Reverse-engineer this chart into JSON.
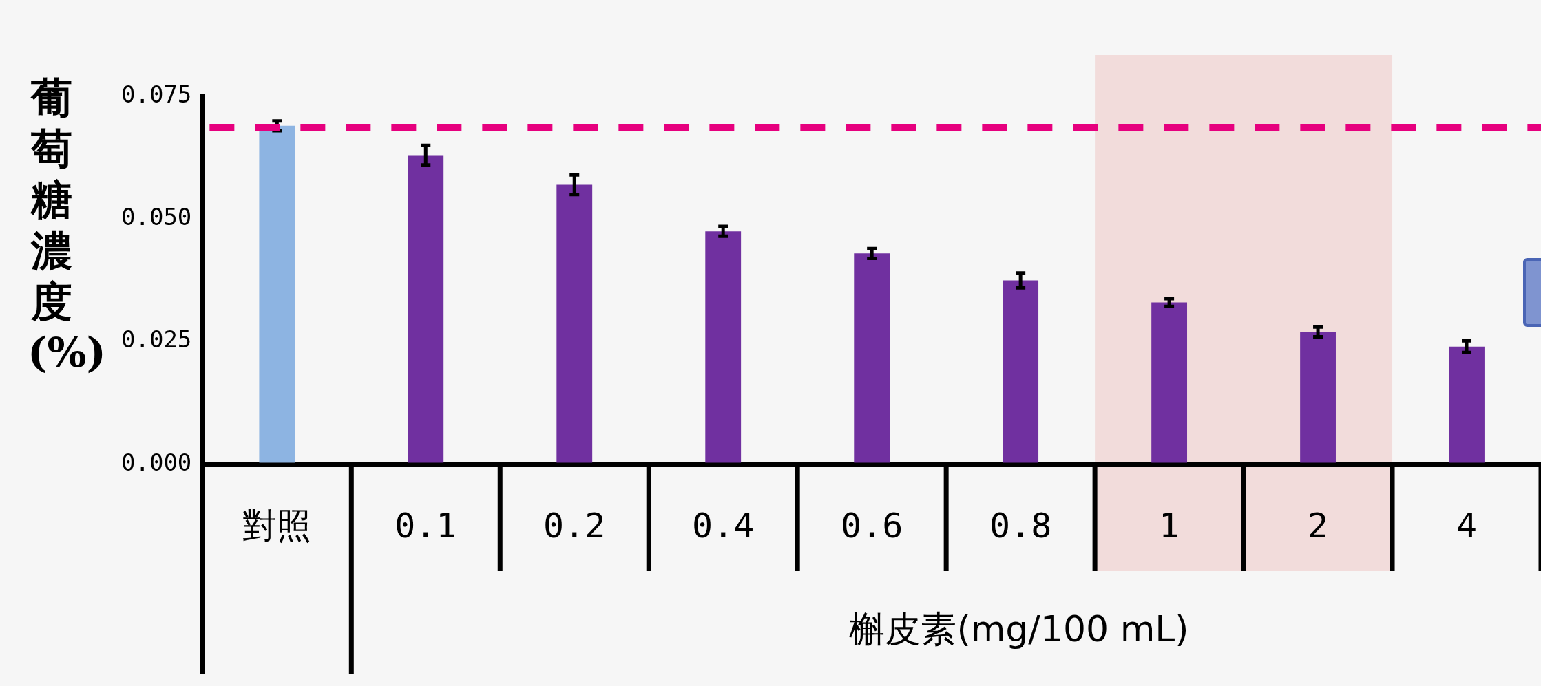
{
  "chart_data": {
    "type": "bar",
    "xlabel": "槲皮素(mg/100 mL)",
    "ylabel": "葡萄糖濃度(%)",
    "categories": [
      "對照",
      "0.1",
      "0.2",
      "0.4",
      "0.6",
      "0.8",
      "1",
      "2",
      "4"
    ],
    "values": [
      0.069,
      0.063,
      0.057,
      0.0475,
      0.043,
      0.0375,
      0.033,
      0.027,
      0.024
    ],
    "errors": [
      0.001,
      0.002,
      0.002,
      0.001,
      0.001,
      0.0015,
      0.0008,
      0.001,
      0.0012
    ],
    "colors": [
      "#8db4e2",
      "#7030a0",
      "#7030a0",
      "#7030a0",
      "#7030a0",
      "#7030a0",
      "#7030a0",
      "#7030a0",
      "#7030a0"
    ],
    "ylim": [
      0,
      0.075
    ],
    "yticks": [
      {
        "value": 0,
        "label": "0.000"
      },
      {
        "value": 0.025,
        "label": "0.025"
      },
      {
        "value": 0.05,
        "label": "0.050"
      },
      {
        "value": 0.075,
        "label": "0.075"
      }
    ],
    "ref_lines": [
      {
        "axis": "y",
        "value": 0.0687,
        "color": "#e6007e",
        "line_style": "dashed"
      }
    ],
    "bands": [
      {
        "axis": "x",
        "from": "1",
        "to": "2",
        "color": "#f2dcdb"
      }
    ],
    "legend": false
  }
}
